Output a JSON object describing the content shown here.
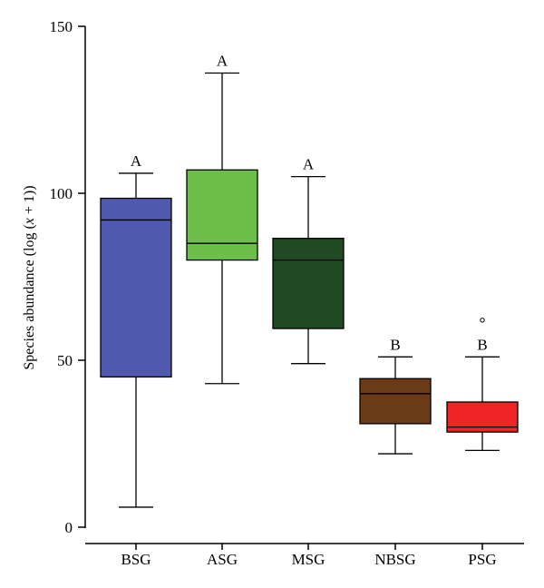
{
  "chart_data": {
    "type": "boxplot",
    "ylabel_main": "Species abundance (log (",
    "ylabel_var": "x",
    "ylabel_tail": " + 1))",
    "ylim": [
      0,
      150
    ],
    "yticks": [
      0,
      50,
      100,
      150
    ],
    "grid": false,
    "categories": [
      "BSG",
      "ASG",
      "MSG",
      "NBSG",
      "PSG"
    ],
    "boxes": [
      {
        "category": "BSG",
        "min": 6,
        "q1": 45,
        "median": 92,
        "q3": 98.5,
        "max": 106,
        "outliers": [],
        "group_letter": "A",
        "color": "#4F5AAD"
      },
      {
        "category": "ASG",
        "min": 43,
        "q1": 80,
        "median": 85,
        "q3": 107,
        "max": 136,
        "outliers": [],
        "group_letter": "A",
        "color": "#6CC04A"
      },
      {
        "category": "MSG",
        "min": 49,
        "q1": 59.5,
        "median": 80,
        "q3": 86.5,
        "max": 105,
        "outliers": [],
        "group_letter": "A",
        "color": "#1F4A23"
      },
      {
        "category": "NBSG",
        "min": 22,
        "q1": 31,
        "median": 40,
        "q3": 44.5,
        "max": 51,
        "outliers": [],
        "group_letter": "B",
        "color": "#6B3A17"
      },
      {
        "category": "PSG",
        "min": 23,
        "q1": 28.5,
        "median": 30,
        "q3": 37.5,
        "max": 51,
        "outliers": [
          62
        ],
        "group_letter": "B",
        "color": "#EE2524"
      }
    ]
  }
}
